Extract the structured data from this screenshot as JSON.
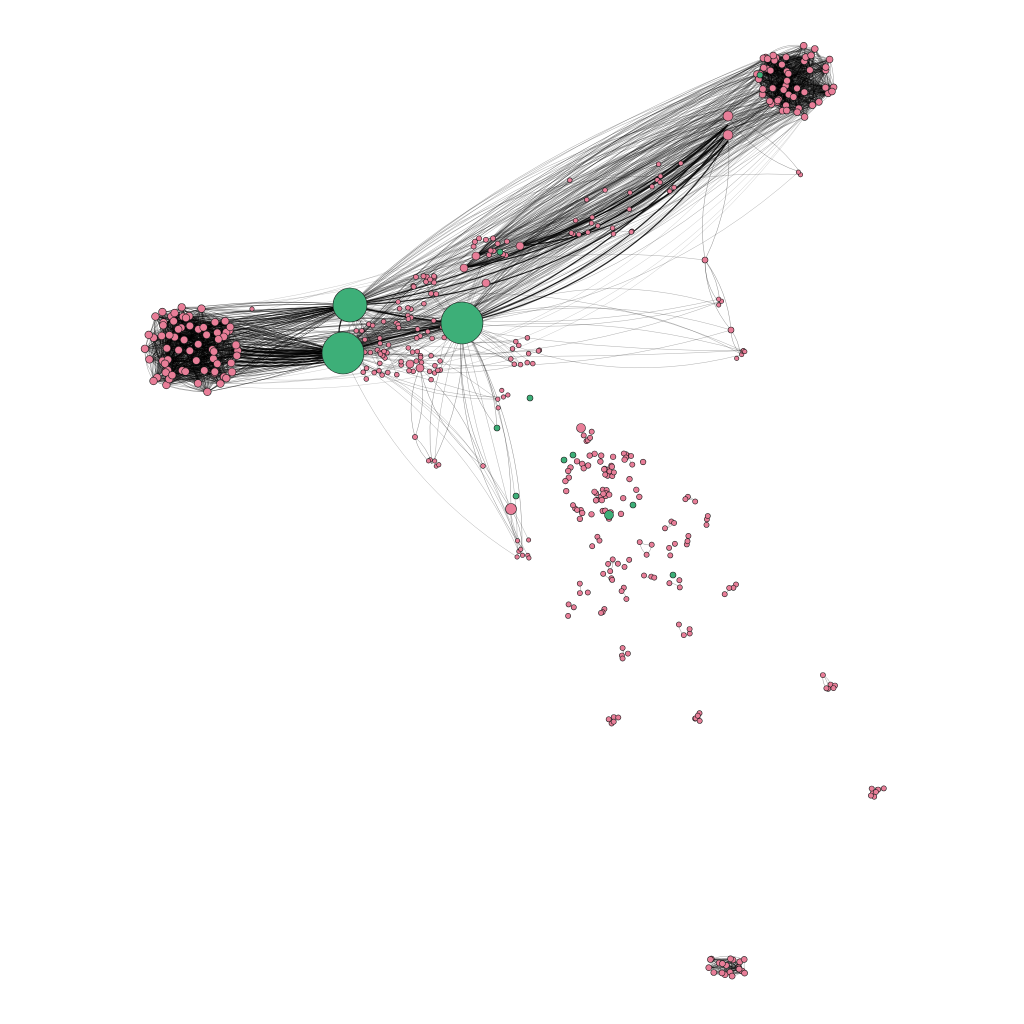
{
  "graph": {
    "type": "network",
    "background": "#ffffff",
    "colors": {
      "pink_node": "#e87e98",
      "green_node": "#3daf78",
      "edge": "#000000",
      "node_outline": "#1a1a1a"
    },
    "node_categories": [
      "pink",
      "green"
    ],
    "major_hubs": [
      {
        "id": "hub-1",
        "category": "green",
        "relative_size": "large"
      },
      {
        "id": "hub-2",
        "category": "green",
        "relative_size": "large"
      },
      {
        "id": "hub-3",
        "category": "green",
        "relative_size": "large"
      }
    ],
    "dense_clusters": [
      {
        "id": "cluster-left",
        "category": "pink"
      },
      {
        "id": "cluster-top-right",
        "category": "pink"
      },
      {
        "id": "cluster-bottom",
        "category": "pink"
      }
    ]
  }
}
